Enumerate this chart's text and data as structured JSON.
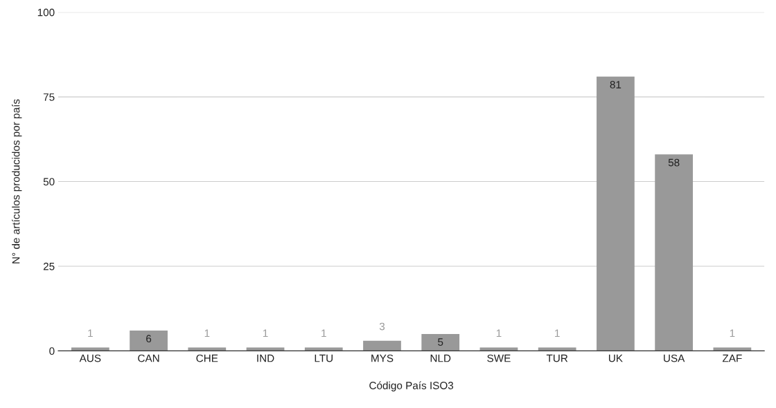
{
  "chart_data": {
    "type": "bar",
    "xlabel": "Código País ISO3",
    "ylabel": "N° de artículos producidos por país",
    "categories": [
      "AUS",
      "CAN",
      "CHE",
      "IND",
      "LTU",
      "MYS",
      "NLD",
      "SWE",
      "TUR",
      "UK",
      "USA",
      "ZAF"
    ],
    "values": [
      1,
      6,
      1,
      1,
      1,
      3,
      5,
      1,
      1,
      81,
      58,
      1
    ],
    "color": "#999999",
    "ylim": [
      0,
      100
    ],
    "yticks": [
      0,
      25,
      50,
      75,
      100
    ],
    "grid": "y",
    "data_labels": true
  }
}
